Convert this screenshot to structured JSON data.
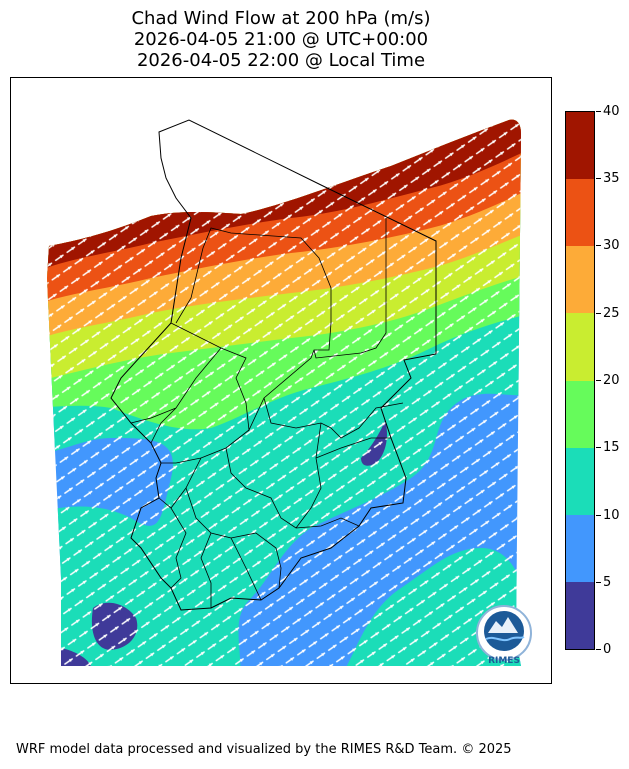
{
  "title": {
    "line1": "Chad Wind Flow at 200 hPa (m/s)",
    "line2": "2026-04-05 21:00 @ UTC+00:00",
    "line3": "2026-04-05 22:00 @ Local Time"
  },
  "colorbar": {
    "unit": "m/s",
    "ticks": [
      "40",
      "35",
      "30",
      "25",
      "20",
      "15",
      "10",
      "5",
      "0"
    ],
    "colors": [
      "#a01500",
      "#ec5214",
      "#fdab38",
      "#c9ed30",
      "#66fb5b",
      "#1bddb8",
      "#4297fd",
      "#3f3a99"
    ]
  },
  "map": {
    "region": "Chad",
    "variable": "Wind speed and direction at 200 hPa"
  },
  "logo": {
    "label": "RIMES"
  },
  "footer": "WRF model data processed and visualized by the RIMES R&D Team. © 2025"
}
